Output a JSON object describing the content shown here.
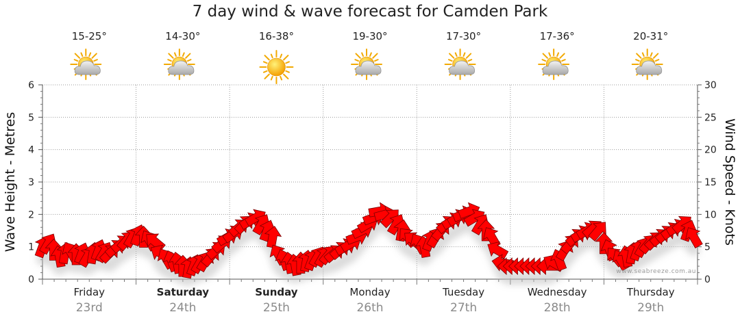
{
  "title": "7 day wind & wave forecast for Camden Park",
  "watermark": "www.seabreeze.com.au",
  "days": [
    {
      "name": "Friday",
      "date": "23rd",
      "bold": false,
      "temp": "15-25°",
      "icon": "partly-cloudy-icon"
    },
    {
      "name": "Saturday",
      "date": "24th",
      "bold": true,
      "temp": "14-30°",
      "icon": "partly-cloudy-icon"
    },
    {
      "name": "Sunday",
      "date": "25th",
      "bold": true,
      "temp": "16-38°",
      "icon": "sunny-icon"
    },
    {
      "name": "Monday",
      "date": "26th",
      "bold": false,
      "temp": "19-30°",
      "icon": "partly-cloudy-icon"
    },
    {
      "name": "Tuesday",
      "date": "27th",
      "bold": false,
      "temp": "17-30°",
      "icon": "partly-cloudy-icon"
    },
    {
      "name": "Wednesday",
      "date": "28th",
      "bold": false,
      "temp": "17-36°",
      "icon": "partly-cloudy-icon"
    },
    {
      "name": "Thursday",
      "date": "29th",
      "bold": false,
      "temp": "20-31°",
      "icon": "partly-cloudy-icon"
    }
  ],
  "chart_data": {
    "type": "line",
    "ylabel_left": "Wave Height - Metres",
    "ylabel_right": "Wind Speed - Knots",
    "ylim_left": [
      0,
      6
    ],
    "ylim_right": [
      0,
      30
    ],
    "yticks_left": [
      "0",
      "1",
      "2",
      "3",
      "4",
      "5",
      "6"
    ],
    "yticks_right": [
      "0",
      "5",
      "10",
      "15",
      "20",
      "25",
      "30"
    ],
    "x_range_days": [
      0,
      7
    ],
    "grid": true,
    "arrow_color": "#ff0000",
    "series": [
      {
        "unit": "knots",
        "x": [
          0.0,
          0.06,
          0.12,
          0.18,
          0.24,
          0.3,
          0.36,
          0.42,
          0.48,
          0.54,
          0.6,
          0.66,
          0.72,
          0.78,
          0.84,
          0.9,
          0.96,
          1.02,
          1.08,
          1.14,
          1.2,
          1.26,
          1.32,
          1.38,
          1.44,
          1.5,
          1.56,
          1.62,
          1.68,
          1.74,
          1.8,
          1.86,
          1.92,
          1.98,
          2.04,
          2.1,
          2.16,
          2.22,
          2.28,
          2.34,
          2.4,
          2.46,
          2.52,
          2.58,
          2.64,
          2.7,
          2.76,
          2.82,
          2.88,
          2.94,
          3.0,
          3.06,
          3.12,
          3.18,
          3.24,
          3.3,
          3.36,
          3.42,
          3.48,
          3.54,
          3.6,
          3.66,
          3.72,
          3.78,
          3.84,
          3.9,
          3.96,
          4.02,
          4.08,
          4.14,
          4.2,
          4.26,
          4.32,
          4.38,
          4.44,
          4.5,
          4.56,
          4.62,
          4.68,
          4.74,
          4.8,
          4.86,
          4.92,
          4.98,
          5.04,
          5.1,
          5.16,
          5.22,
          5.28,
          5.34,
          5.4,
          5.46,
          5.52,
          5.58,
          5.64,
          5.7,
          5.76,
          5.82,
          5.88,
          5.94,
          6.0,
          6.06,
          6.12,
          6.18,
          6.24,
          6.3,
          6.36,
          6.42,
          6.48,
          6.54,
          6.6,
          6.66,
          6.72,
          6.78,
          6.84,
          6.9,
          6.96
        ],
        "values": [
          5.0,
          5.5,
          4.5,
          3.5,
          4.0,
          4.2,
          3.8,
          4.0,
          3.5,
          4.0,
          4.5,
          4.2,
          4.0,
          4.8,
          5.5,
          6.0,
          6.5,
          6.8,
          6.5,
          6.0,
          5.8,
          4.0,
          3.2,
          2.8,
          2.5,
          2.0,
          1.8,
          2.2,
          2.5,
          2.8,
          3.5,
          4.5,
          5.5,
          6.5,
          7.0,
          8.0,
          8.5,
          9.0,
          9.5,
          8.5,
          7.5,
          6.5,
          3.8,
          3.0,
          2.5,
          2.2,
          2.5,
          2.8,
          3.0,
          3.5,
          3.5,
          3.8,
          4.0,
          4.5,
          5.0,
          5.5,
          6.5,
          7.5,
          8.5,
          9.5,
          10.5,
          10.0,
          9.5,
          8.5,
          7.5,
          6.5,
          6.0,
          5.5,
          5.0,
          6.0,
          6.5,
          7.5,
          8.5,
          9.0,
          9.5,
          10.0,
          10.5,
          9.5,
          8.5,
          7.5,
          6.5,
          4.5,
          2.5,
          2.0,
          2.0,
          2.0,
          2.0,
          2.0,
          2.0,
          2.0,
          2.0,
          2.5,
          3.0,
          4.5,
          5.5,
          6.5,
          7.0,
          7.5,
          7.8,
          7.5,
          5.5,
          4.5,
          3.5,
          3.0,
          3.5,
          4.0,
          4.5,
          5.0,
          5.5,
          6.0,
          6.5,
          7.0,
          7.5,
          8.0,
          8.5,
          7.5,
          6.5
        ],
        "directions_deg": [
          70,
          60,
          90,
          100,
          80,
          120,
          90,
          70,
          60,
          80,
          70,
          60,
          45,
          40,
          40,
          50,
          60,
          70,
          90,
          120,
          140,
          150,
          120,
          110,
          100,
          90,
          80,
          70,
          60,
          60,
          50,
          40,
          40,
          30,
          35,
          40,
          45,
          30,
          30,
          60,
          70,
          80,
          120,
          110,
          100,
          100,
          90,
          80,
          70,
          60,
          60,
          50,
          40,
          40,
          30,
          30,
          20,
          25,
          30,
          20,
          10,
          15,
          45,
          60,
          80,
          130,
          140,
          120,
          100,
          70,
          60,
          50,
          40,
          30,
          30,
          20,
          20,
          30,
          60,
          90,
          120,
          150,
          170,
          180,
          180,
          180,
          180,
          180,
          180,
          180,
          180,
          150,
          110,
          60,
          50,
          40,
          30,
          30,
          40,
          50,
          90,
          110,
          130,
          120,
          100,
          80,
          70,
          60,
          50,
          45,
          40,
          40,
          35,
          30,
          40,
          70,
          120
        ]
      }
    ]
  }
}
